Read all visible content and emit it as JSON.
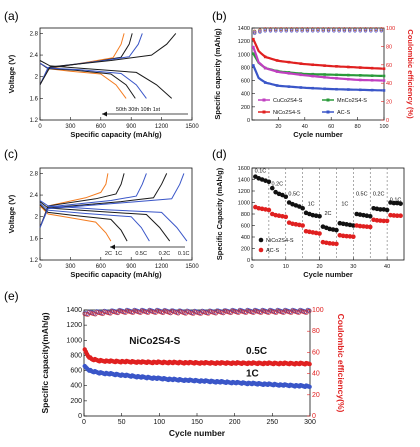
{
  "panels": {
    "a": "(a)",
    "b": "(b)",
    "c": "(c)",
    "d": "(d)",
    "e": "(e)"
  },
  "chart_data": [
    {
      "id": "a",
      "type": "line",
      "xlabel": "Specific capacity (mAh/g)",
      "ylabel": "Voltage (V)",
      "xlim": [
        0,
        1500
      ],
      "ylim": [
        1.2,
        2.9
      ],
      "xticks": [
        0,
        300,
        600,
        900,
        1200,
        1500
      ],
      "yticks": [
        1.2,
        1.6,
        2.0,
        2.4,
        2.8
      ],
      "annotation": "50th 30th 10th    1st",
      "series": [
        {
          "color": "#f47c20",
          "discharge": [
            [
              0,
              2.25
            ],
            [
              80,
              2.15
            ],
            [
              300,
              2.1
            ],
            [
              600,
              2.05
            ],
            [
              750,
              1.85
            ],
            [
              850,
              1.6
            ]
          ],
          "charge": [
            [
              0,
              1.85
            ],
            [
              80,
              2.15
            ],
            [
              500,
              2.28
            ],
            [
              720,
              2.35
            ],
            [
              800,
              2.6
            ],
            [
              830,
              2.8
            ]
          ]
        },
        {
          "color": "#1a1a1a",
          "discharge": [
            [
              0,
              2.25
            ],
            [
              80,
              2.15
            ],
            [
              350,
              2.12
            ],
            [
              700,
              2.05
            ],
            [
              850,
              1.85
            ],
            [
              940,
              1.6
            ]
          ],
          "charge": [
            [
              0,
              1.85
            ],
            [
              80,
              2.16
            ],
            [
              550,
              2.28
            ],
            [
              800,
              2.36
            ],
            [
              880,
              2.6
            ],
            [
              910,
              2.8
            ]
          ]
        },
        {
          "color": "#3a56c8",
          "discharge": [
            [
              0,
              2.25
            ],
            [
              80,
              2.16
            ],
            [
              400,
              2.13
            ],
            [
              800,
              2.06
            ],
            [
              950,
              1.85
            ],
            [
              1050,
              1.6
            ]
          ],
          "charge": [
            [
              0,
              1.85
            ],
            [
              80,
              2.17
            ],
            [
              600,
              2.29
            ],
            [
              880,
              2.37
            ],
            [
              970,
              2.6
            ],
            [
              1010,
              2.8
            ]
          ]
        },
        {
          "color": "#1a1a1a",
          "discharge": [
            [
              0,
              2.3
            ],
            [
              100,
              2.2
            ],
            [
              450,
              2.15
            ],
            [
              950,
              2.08
            ],
            [
              1150,
              1.85
            ],
            [
              1300,
              1.6
            ]
          ],
          "charge": [
            [
              0,
              1.85
            ],
            [
              100,
              2.18
            ],
            [
              700,
              2.3
            ],
            [
              1100,
              2.4
            ],
            [
              1250,
              2.6
            ],
            [
              1340,
              2.8
            ]
          ]
        }
      ]
    },
    {
      "id": "b",
      "type": "line",
      "xlabel": "Cycle number",
      "ylabel": "Specific capacity (mAh/g)",
      "y2label": "Coulombic efficiency (%)",
      "xlim": [
        0,
        100
      ],
      "ylim": [
        0,
        1400
      ],
      "y2lim": [
        0,
        100
      ],
      "xticks": [
        20,
        40,
        60,
        80,
        100
      ],
      "yticks": [
        0,
        200,
        400,
        600,
        800,
        1000,
        1200,
        1400
      ],
      "y2ticks": [
        0,
        20,
        40,
        60,
        80,
        100
      ],
      "legend": [
        "CuCo2S4-S",
        "MnCo2S4-S",
        "NiCo2S4-S",
        "AC-S"
      ],
      "series": [
        {
          "name": "NiCo2S4-S",
          "color": "#e02020",
          "x": [
            1,
            5,
            10,
            20,
            40,
            60,
            80,
            100
          ],
          "y": [
            1230,
            1050,
            960,
            900,
            850,
            820,
            800,
            780
          ]
        },
        {
          "name": "MnCo2S4-S",
          "color": "#2a9a3a",
          "x": [
            1,
            5,
            10,
            20,
            40,
            60,
            80,
            100
          ],
          "y": [
            1010,
            870,
            790,
            740,
            700,
            690,
            680,
            670
          ]
        },
        {
          "name": "CuCo2S4-S",
          "color": "#c040c0",
          "x": [
            1,
            5,
            10,
            20,
            40,
            60,
            80,
            100
          ],
          "y": [
            1110,
            880,
            790,
            730,
            680,
            640,
            610,
            600
          ]
        },
        {
          "name": "AC-S",
          "color": "#3a56c8",
          "x": [
            1,
            5,
            10,
            20,
            40,
            60,
            80,
            100
          ],
          "y": [
            830,
            640,
            570,
            520,
            490,
            470,
            460,
            450
          ]
        }
      ],
      "efficiency": {
        "x": [
          1,
          10,
          40,
          70,
          100
        ],
        "y": [
          96,
          99,
          99,
          99,
          99
        ]
      }
    },
    {
      "id": "c",
      "type": "line",
      "xlabel": "Specific capacity (mAh/g)",
      "ylabel": "Voltage (V)",
      "xlim": [
        0,
        1500
      ],
      "ylim": [
        1.2,
        2.9
      ],
      "xticks": [
        0,
        300,
        600,
        900,
        1200,
        1500
      ],
      "yticks": [
        1.2,
        1.6,
        2.0,
        2.4,
        2.8
      ],
      "rate_labels": [
        "2C",
        "1C",
        "0.5C",
        "0.2C",
        "0.1C"
      ],
      "series": [
        {
          "color": "#f47c20",
          "discharge": [
            [
              0,
              2.2
            ],
            [
              80,
              2.05
            ],
            [
              300,
              1.98
            ],
            [
              550,
              1.9
            ],
            [
              650,
              1.7
            ],
            [
              700,
              1.55
            ]
          ],
          "charge": [
            [
              0,
              1.8
            ],
            [
              80,
              2.2
            ],
            [
              450,
              2.35
            ],
            [
              600,
              2.45
            ],
            [
              650,
              2.6
            ],
            [
              670,
              2.8
            ]
          ]
        },
        {
          "color": "#1a1a1a",
          "discharge": [
            [
              0,
              2.22
            ],
            [
              80,
              2.08
            ],
            [
              350,
              2.02
            ],
            [
              700,
              1.95
            ],
            [
              800,
              1.75
            ],
            [
              860,
              1.55
            ]
          ],
          "charge": [
            [
              0,
              1.8
            ],
            [
              80,
              2.2
            ],
            [
              550,
              2.33
            ],
            [
              750,
              2.42
            ],
            [
              800,
              2.6
            ],
            [
              830,
              2.8
            ]
          ]
        },
        {
          "color": "#3a56c8",
          "discharge": [
            [
              0,
              2.25
            ],
            [
              80,
              2.12
            ],
            [
              450,
              2.06
            ],
            [
              900,
              2.0
            ],
            [
              1000,
              1.8
            ],
            [
              1080,
              1.55
            ]
          ],
          "charge": [
            [
              0,
              1.8
            ],
            [
              80,
              2.18
            ],
            [
              700,
              2.3
            ],
            [
              950,
              2.38
            ],
            [
              1010,
              2.6
            ],
            [
              1050,
              2.8
            ]
          ]
        },
        {
          "color": "#1a1a1a",
          "discharge": [
            [
              0,
              2.28
            ],
            [
              80,
              2.16
            ],
            [
              550,
              2.1
            ],
            [
              1050,
              2.04
            ],
            [
              1180,
              1.8
            ],
            [
              1280,
              1.55
            ]
          ],
          "charge": [
            [
              0,
              1.8
            ],
            [
              80,
              2.16
            ],
            [
              800,
              2.28
            ],
            [
              1120,
              2.35
            ],
            [
              1200,
              2.6
            ],
            [
              1250,
              2.8
            ]
          ]
        },
        {
          "color": "#3a56c8",
          "discharge": [
            [
              0,
              2.3
            ],
            [
              80,
              2.2
            ],
            [
              650,
              2.13
            ],
            [
              1200,
              2.08
            ],
            [
              1350,
              1.8
            ],
            [
              1450,
              1.55
            ]
          ],
          "charge": [
            [
              0,
              1.8
            ],
            [
              80,
              2.15
            ],
            [
              900,
              2.27
            ],
            [
              1300,
              2.33
            ],
            [
              1380,
              2.6
            ],
            [
              1420,
              2.8
            ]
          ]
        }
      ]
    },
    {
      "id": "d",
      "type": "scatter",
      "xlabel": "Cycle number",
      "ylabel": "Specific Capacity (mAh/g)",
      "xlim": [
        0,
        45
      ],
      "ylim": [
        0,
        1600
      ],
      "xticks": [
        0,
        10,
        20,
        30,
        40
      ],
      "yticks": [
        0,
        200,
        400,
        600,
        800,
        1000,
        1200,
        1400,
        1600
      ],
      "legend": [
        "NiCo2S4-S",
        "AC-S"
      ],
      "rate_segments": [
        "0.1C",
        "0.2C",
        "0.5C",
        "1C",
        "2C",
        "1C",
        "0.5C",
        "0.2C",
        "0.1C"
      ],
      "series": [
        {
          "name": "NiCo2S4-S",
          "color": "#111111",
          "x": [
            1,
            2,
            3,
            4,
            5,
            6,
            7,
            8,
            9,
            10,
            11,
            12,
            13,
            14,
            15,
            16,
            17,
            18,
            19,
            20,
            21,
            22,
            23,
            24,
            25,
            26,
            27,
            28,
            29,
            30,
            31,
            32,
            33,
            34,
            35,
            36,
            37,
            38,
            39,
            40,
            41,
            42,
            43,
            44
          ],
          "y": [
            1450,
            1420,
            1400,
            1380,
            1360,
            1250,
            1180,
            1150,
            1130,
            1100,
            1000,
            970,
            950,
            930,
            900,
            820,
            800,
            780,
            770,
            760,
            580,
            560,
            540,
            530,
            520,
            640,
            630,
            620,
            610,
            600,
            800,
            790,
            780,
            770,
            760,
            900,
            890,
            880,
            880,
            870,
            1000,
            990,
            990,
            980
          ]
        },
        {
          "name": "AC-S",
          "color": "#e02020",
          "x": [
            1,
            2,
            3,
            4,
            5,
            6,
            7,
            8,
            9,
            10,
            11,
            12,
            13,
            14,
            15,
            16,
            17,
            18,
            19,
            20,
            21,
            22,
            23,
            24,
            25,
            26,
            27,
            28,
            29,
            30,
            31,
            32,
            33,
            34,
            35,
            36,
            37,
            38,
            39,
            40,
            41,
            42,
            43,
            44
          ],
          "y": [
            920,
            900,
            890,
            880,
            870,
            800,
            780,
            770,
            760,
            750,
            650,
            630,
            620,
            610,
            600,
            500,
            490,
            480,
            470,
            460,
            310,
            300,
            290,
            285,
            280,
            430,
            420,
            415,
            410,
            405,
            600,
            590,
            585,
            580,
            575,
            700,
            690,
            685,
            680,
            680,
            780,
            775,
            770,
            770
          ]
        }
      ]
    },
    {
      "id": "e",
      "type": "scatter",
      "xlabel": "Cycle number",
      "ylabel": "Specific capacity(mAh/g)",
      "y2label": "Coulombic efficiency(%)",
      "xlim": [
        0,
        300
      ],
      "ylim": [
        0,
        1400
      ],
      "y2lim": [
        0,
        100
      ],
      "xticks": [
        0,
        50,
        100,
        150,
        200,
        250,
        300
      ],
      "yticks": [
        0,
        200,
        400,
        600,
        800,
        1000,
        1200,
        1400
      ],
      "y2ticks": [
        0,
        20,
        40,
        60,
        80,
        100
      ],
      "label_material": "NiCo2S4-S",
      "label_05c": "0.5C",
      "label_1c": "1C",
      "series": [
        {
          "name": "0.5C",
          "color": "#e02020",
          "x": [
            1,
            5,
            10,
            20,
            40,
            80,
            120,
            160,
            200,
            240,
            280,
            300
          ],
          "y": [
            870,
            800,
            750,
            730,
            720,
            710,
            705,
            700,
            698,
            695,
            692,
            690
          ]
        },
        {
          "name": "1C",
          "color": "#3a56c8",
          "x": [
            1,
            5,
            10,
            20,
            40,
            80,
            120,
            160,
            200,
            240,
            280,
            300
          ],
          "y": [
            650,
            620,
            590,
            570,
            550,
            510,
            480,
            460,
            440,
            420,
            400,
            390
          ]
        }
      ],
      "efficiency": {
        "x": [
          1,
          50,
          100,
          150,
          200,
          250,
          300
        ],
        "y": [
          97,
          99,
          99,
          98,
          99,
          99,
          99
        ]
      }
    }
  ]
}
